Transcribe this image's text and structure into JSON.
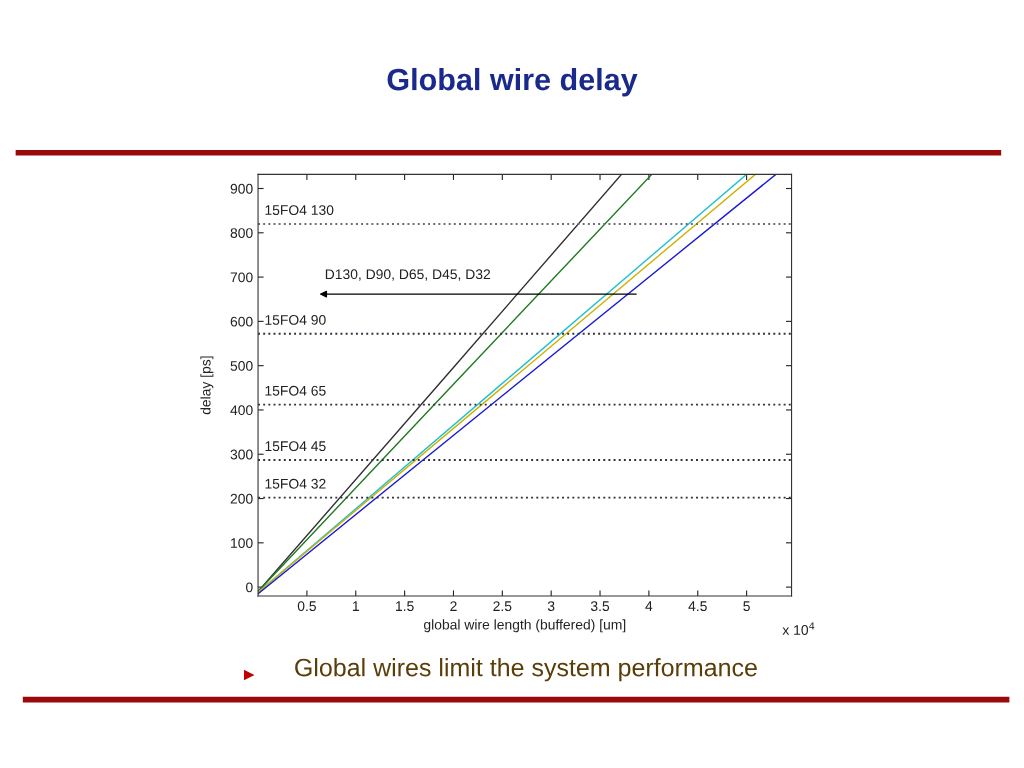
{
  "chart_data": {
    "type": "line",
    "title": "Global wire delay",
    "xlabel": "global wire length (buffered) [um]",
    "ylabel": "delay [ps]",
    "series": [
      {
        "color": "#303030",
        "x": [
          0,
          2,
          3.72
        ],
        "values": [
          -10,
          496,
          932
        ]
      },
      {
        "color": "#1f7a1f",
        "x": [
          0,
          2,
          4.03
        ],
        "values": [
          -10,
          458,
          932
        ]
      },
      {
        "color": "#20c0d0",
        "x": [
          0,
          2.5,
          5.0
        ],
        "values": [
          -12,
          460,
          932
        ]
      },
      {
        "color": "#d0b000",
        "x": [
          0,
          2.5,
          5.09
        ],
        "values": [
          -12,
          451,
          932
        ]
      },
      {
        "color": "#1a1ad8",
        "x": [
          0,
          2.5,
          5.3
        ],
        "values": [
          -15,
          432,
          932
        ]
      }
    ],
    "ref_lines": [
      {
        "axis": "y",
        "value": 820,
        "label": "15FO4 130",
        "color": "#6a6a80",
        "line_style": "dotted"
      },
      {
        "axis": "y",
        "value": 572,
        "label": "15FO4 90",
        "color": "#303040",
        "line_style": "dotted"
      },
      {
        "axis": "y",
        "value": 412,
        "label": "15FO4 65",
        "color": "#303040",
        "line_style": "dotted"
      },
      {
        "axis": "y",
        "value": 287,
        "label": "15FO4 45",
        "color": "#303040",
        "line_style": "dotted"
      },
      {
        "axis": "y",
        "value": 202,
        "label": "15FO4 32",
        "color": "#303040",
        "line_style": "dotted"
      }
    ],
    "annotations": [
      "D130, D90, D65, D45, D32",
      "x 10$^{4}$",
      "Global wires limit the system performance"
    ],
    "xlim": [
      0,
      5.46
    ],
    "xticks": [
      0.5,
      1,
      1.5,
      2,
      2.5,
      3,
      3.5,
      4,
      4.5,
      5
    ],
    "ylim": [
      -20,
      932
    ],
    "yticks": [
      0,
      100,
      200,
      300,
      400,
      500,
      600,
      700,
      800,
      900
    ],
    "grid": false,
    "legend": false,
    "marker": "none",
    "line_style": "solid"
  }
}
